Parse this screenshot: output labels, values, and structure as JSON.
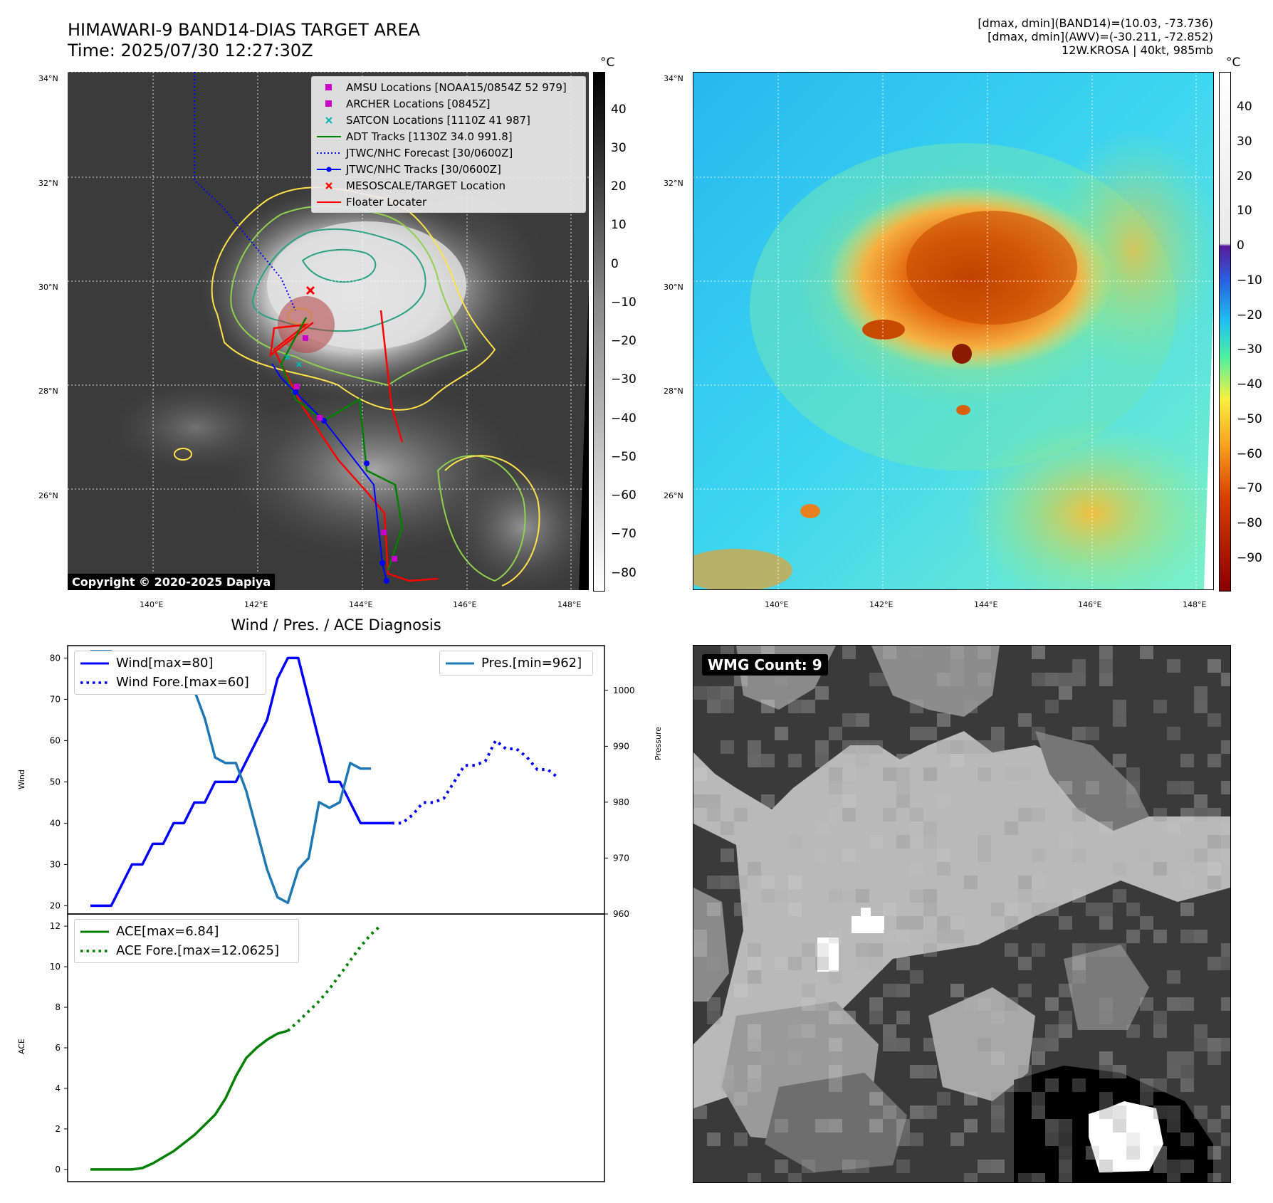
{
  "header": {
    "title_line1": "HIMAWARI-9 BAND14-DIAS TARGET AREA",
    "title_line2": "Time: 2025/07/30 12:27:30Z",
    "info_line1": "[dmax, dmin](BAND14)=(10.03, -73.736)",
    "info_line2": "[dmax, dmin](AWV)=(-30.211, -72.852)",
    "info_line3": "12W.KROSA | 40kt, 985mb"
  },
  "colors": {
    "wind": "#0000ff",
    "pressure": "#1f77b4",
    "ace": "#008000",
    "adt": "#008000",
    "jtwc": "#0000ff",
    "floater": "#ff0000",
    "amsu": "#cc00cc",
    "satcon": "#00b5b5",
    "contour_yellow": "#ffe24a",
    "contour_green": "#8fd14f",
    "contour_teal": "#2aa27e"
  },
  "map_axes": {
    "lat_ticks": [
      "34°N",
      "32°N",
      "30°N",
      "28°N",
      "26°N"
    ],
    "lon_ticks": [
      "140°E",
      "142°E",
      "144°E",
      "146°E",
      "148°E"
    ],
    "colorbar_unit": "°C",
    "bw_colorbar_ticks": [
      "40",
      "30",
      "20",
      "10",
      "0",
      "−10",
      "−20",
      "−30",
      "−40",
      "−50",
      "−60",
      "−70",
      "−80"
    ],
    "color_colorbar_ticks": [
      "40",
      "30",
      "20",
      "10",
      "0",
      "−10",
      "−20",
      "−30",
      "−40",
      "−50",
      "−60",
      "−70",
      "−80",
      "−90"
    ]
  },
  "map_legend": [
    {
      "label": "AMSU Locations [NOAA15/0854Z 52 979]",
      "icon": "square-marker",
      "color": "#cc00cc"
    },
    {
      "label": "ARCHER Locations [0845Z]",
      "icon": "square-marker",
      "color": "#cc00cc"
    },
    {
      "label": "SATCON Locations [1110Z 41 987]",
      "icon": "x-marker",
      "color": "#00b5b5"
    },
    {
      "label": "ADT Tracks [1130Z 34.0 991.8]",
      "icon": "solid-line",
      "color": "#008000"
    },
    {
      "label": "JTWC/NHC Forecast [30/0600Z]",
      "icon": "dotted-line",
      "color": "#0000ff"
    },
    {
      "label": "JTWC/NHC Tracks [30/0600Z]",
      "icon": "line-dot",
      "color": "#0000ff"
    },
    {
      "label": "MESOSCALE/TARGET Location",
      "icon": "x-marker",
      "color": "#ff0000"
    },
    {
      "label": "Floater Locater",
      "icon": "solid-line",
      "color": "#ff0000"
    }
  ],
  "copyright": "Copyright © 2020-2025 Dapiya",
  "wmg_label": "WMG Count: 9",
  "chart_data": [
    {
      "type": "line",
      "title": "Wind / Pres. / ACE Diagnosis",
      "ylabel": "Wind",
      "ylim": [
        18,
        83
      ],
      "yticks": [
        20,
        30,
        40,
        50,
        60,
        70,
        80
      ],
      "series": [
        {
          "name": "Wind[max=80]",
          "style": "solid",
          "values": [
            20,
            20,
            20,
            25,
            30,
            30,
            35,
            35,
            40,
            40,
            45,
            45,
            50,
            50,
            50,
            55,
            60,
            65,
            75,
            80,
            80,
            70,
            60,
            50,
            50,
            45,
            40,
            40,
            40,
            40
          ]
        },
        {
          "name": "Wind Fore.[max=60]",
          "style": "dotted",
          "values": [
            40,
            40,
            42,
            45,
            45,
            46,
            50,
            54,
            54,
            55,
            60,
            58,
            58,
            56,
            53,
            53,
            51
          ]
        }
      ]
    },
    {
      "type": "line",
      "ylabel": "Pressure",
      "ylim": [
        960,
        1008
      ],
      "yticks": [
        960,
        970,
        980,
        990,
        1000
      ],
      "series": [
        {
          "name": "Pres.[min=962]",
          "style": "solid",
          "values": [
            1007,
            1007,
            1007,
            1004,
            1004,
            1004,
            1002,
            1002,
            1000,
            1000,
            1000,
            995,
            988,
            987,
            987,
            982,
            975,
            968,
            963,
            962,
            968,
            970,
            980,
            979,
            980,
            987,
            986,
            986
          ]
        }
      ]
    },
    {
      "type": "line",
      "ylabel": "ACE",
      "ylim": [
        -0.6,
        12.6
      ],
      "yticks": [
        0,
        2,
        4,
        6,
        8,
        10,
        12
      ],
      "series": [
        {
          "name": "ACE[max=6.84]",
          "style": "solid",
          "values": [
            0,
            0,
            0,
            0,
            0,
            0.07,
            0.3,
            0.6,
            0.9,
            1.3,
            1.7,
            2.2,
            2.7,
            3.5,
            4.6,
            5.5,
            6.0,
            6.4,
            6.7,
            6.84
          ]
        },
        {
          "name": "ACE Fore.[max=12.0625]",
          "style": "dotted",
          "values": [
            6.84,
            7.3,
            7.8,
            8.3,
            8.9,
            9.6,
            10.3,
            11.0,
            11.6,
            12.0625
          ]
        }
      ]
    }
  ]
}
